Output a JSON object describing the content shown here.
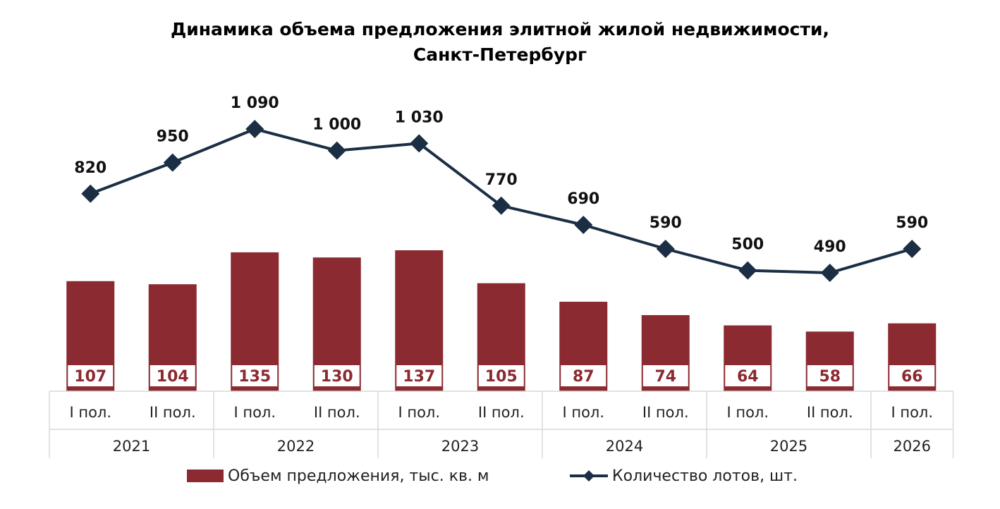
{
  "chart_data": {
    "type": "bar",
    "title_line1": "Динамика объема предложения элитной жилой недвижимости,",
    "title_line2": "Санкт-Петербург",
    "categories": [
      "I пол.",
      "II пол.",
      "I пол.",
      "II пол.",
      "I пол.",
      "II пол.",
      "I пол.",
      "II пол.",
      "I пол.",
      "II пол.",
      "I пол."
    ],
    "years": [
      {
        "label": "2021",
        "span": 2
      },
      {
        "label": "2022",
        "span": 2
      },
      {
        "label": "2023",
        "span": 2
      },
      {
        "label": "2024",
        "span": 2
      },
      {
        "label": "2025",
        "span": 2
      },
      {
        "label": "2026",
        "span": 1
      }
    ],
    "series": [
      {
        "name": "Объем предложения, тыс. кв. м",
        "type": "bar",
        "color": "#8b2a30",
        "values": [
          107,
          104,
          135,
          130,
          137,
          105,
          87,
          74,
          64,
          58,
          66
        ],
        "labels": [
          "107",
          "104",
          "135",
          "130",
          "137",
          "105",
          "87",
          "74",
          "64",
          "58",
          "66"
        ]
      },
      {
        "name": "Количество лотов, шт.",
        "type": "line",
        "color": "#1b2e44",
        "marker": "diamond",
        "values": [
          820,
          950,
          1090,
          1000,
          1030,
          770,
          690,
          590,
          500,
          490,
          590
        ],
        "labels": [
          "820",
          "950",
          "1 090",
          "1 000",
          "1 030",
          "770",
          "690",
          "590",
          "500",
          "490",
          "590"
        ]
      }
    ],
    "legend_position": "bottom",
    "grid": false
  }
}
